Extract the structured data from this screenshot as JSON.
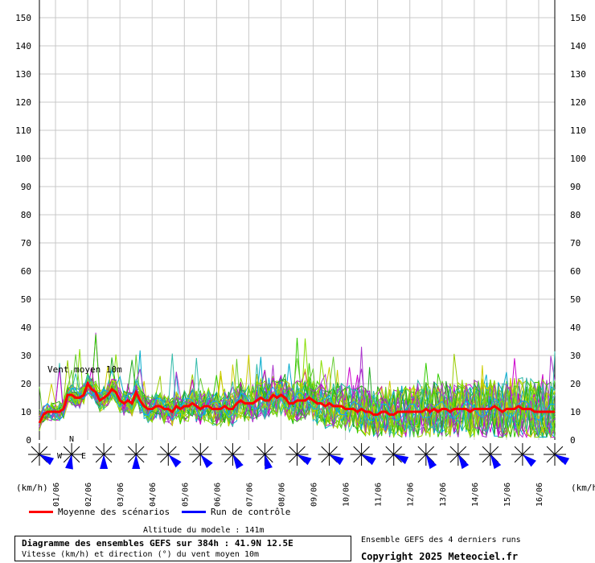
{
  "chart_data": {
    "type": "line",
    "title": "Diagramme des ensembles GEFS sur 384h : 41.9N 12.5E",
    "subtitle": "Vitesse (km/h) et direction (°) du vent moyen 10m",
    "ylabel_left": "(km/h)",
    "ylabel_right": "(km/h)",
    "series_label": "Vent moyen 10m",
    "ylim": [
      0,
      150
    ],
    "yticks": [
      0,
      10,
      20,
      30,
      40,
      50,
      60,
      70,
      80,
      90,
      100,
      110,
      120,
      130,
      140,
      150
    ],
    "date_labels": [
      "01/06",
      "02/06",
      "03/06",
      "04/06",
      "05/06",
      "06/06",
      "07/06",
      "08/06",
      "09/06",
      "10/06",
      "11/06",
      "12/06",
      "13/06",
      "14/06",
      "15/06",
      "16/06"
    ],
    "grid": true,
    "series": [
      {
        "name": "Moyenne des scénarios",
        "color": "#ff0000",
        "x": [
          0,
          3,
          6,
          9,
          12,
          15,
          18,
          21,
          24,
          27,
          30,
          33,
          36,
          39,
          42,
          45,
          48,
          51,
          54,
          57,
          60,
          63,
          66,
          69,
          72,
          75,
          78,
          81,
          84,
          87,
          90,
          93,
          96,
          99,
          102,
          105,
          108,
          111,
          114,
          117,
          120,
          123,
          126,
          129,
          132,
          135,
          138,
          141,
          144,
          147,
          150,
          153,
          156,
          159,
          162,
          165,
          168,
          171,
          174,
          177,
          180,
          183,
          186,
          189,
          192,
          195,
          198,
          201,
          204,
          207,
          210,
          213,
          216,
          219,
          222,
          225,
          228,
          231,
          234,
          237,
          240,
          243,
          246,
          249,
          252,
          255,
          258,
          261,
          264,
          267,
          270,
          273,
          276,
          279,
          282,
          285,
          288,
          291,
          294,
          297,
          300,
          303,
          306,
          309,
          312,
          315,
          318,
          321,
          324,
          327,
          330,
          333,
          336,
          339,
          342,
          345,
          348,
          351,
          354,
          357,
          360,
          363,
          366,
          369,
          372,
          375,
          378,
          381,
          384
        ],
        "values": [
          6,
          9,
          10,
          10,
          10,
          10,
          11,
          16,
          16,
          15,
          15,
          16,
          20,
          18,
          17,
          14,
          15,
          16,
          18,
          17,
          14,
          13,
          14,
          13,
          17,
          14,
          12,
          11,
          11,
          12,
          12,
          11,
          11,
          10,
          12,
          11,
          12,
          12,
          13,
          12,
          11,
          12,
          12,
          11,
          11,
          11,
          12,
          11,
          11,
          13,
          14,
          13,
          13,
          13,
          14,
          15,
          14,
          14,
          16,
          15,
          16,
          15,
          13,
          13,
          14,
          14,
          14,
          15,
          14,
          13,
          13,
          12,
          13,
          12,
          12,
          12,
          11,
          11,
          11,
          10,
          11,
          10,
          10,
          9,
          9,
          10,
          10,
          9,
          9,
          10,
          10,
          10,
          10,
          10,
          10,
          10,
          11,
          10,
          11,
          10,
          11,
          11,
          10,
          11,
          11,
          11,
          11,
          10,
          11,
          11,
          11,
          11,
          11,
          12,
          11,
          10,
          11,
          11,
          11,
          12,
          11,
          11,
          11,
          10,
          10,
          10,
          10,
          10,
          10
        ]
      },
      {
        "name": "Run de contrôle",
        "color": "#0000ff"
      }
    ],
    "wind_direction_deg": [
      300,
      10,
      0,
      0,
      315,
      320,
      330,
      345,
      300,
      300,
      300,
      295,
      330,
      330,
      330,
      310,
      300
    ]
  },
  "compass_labels": {
    "n": "N",
    "w": "W",
    "e": "E"
  },
  "legend": {
    "mean_label": "Moyenne des scénarios",
    "control_label": "Run de contrôle"
  },
  "meta": {
    "altitude": "Altitude du modele : 141m",
    "ensemble_note": "Ensemble GEFS des 4 derniers runs",
    "copyright": "Copyright 2025 Meteociel.fr"
  }
}
